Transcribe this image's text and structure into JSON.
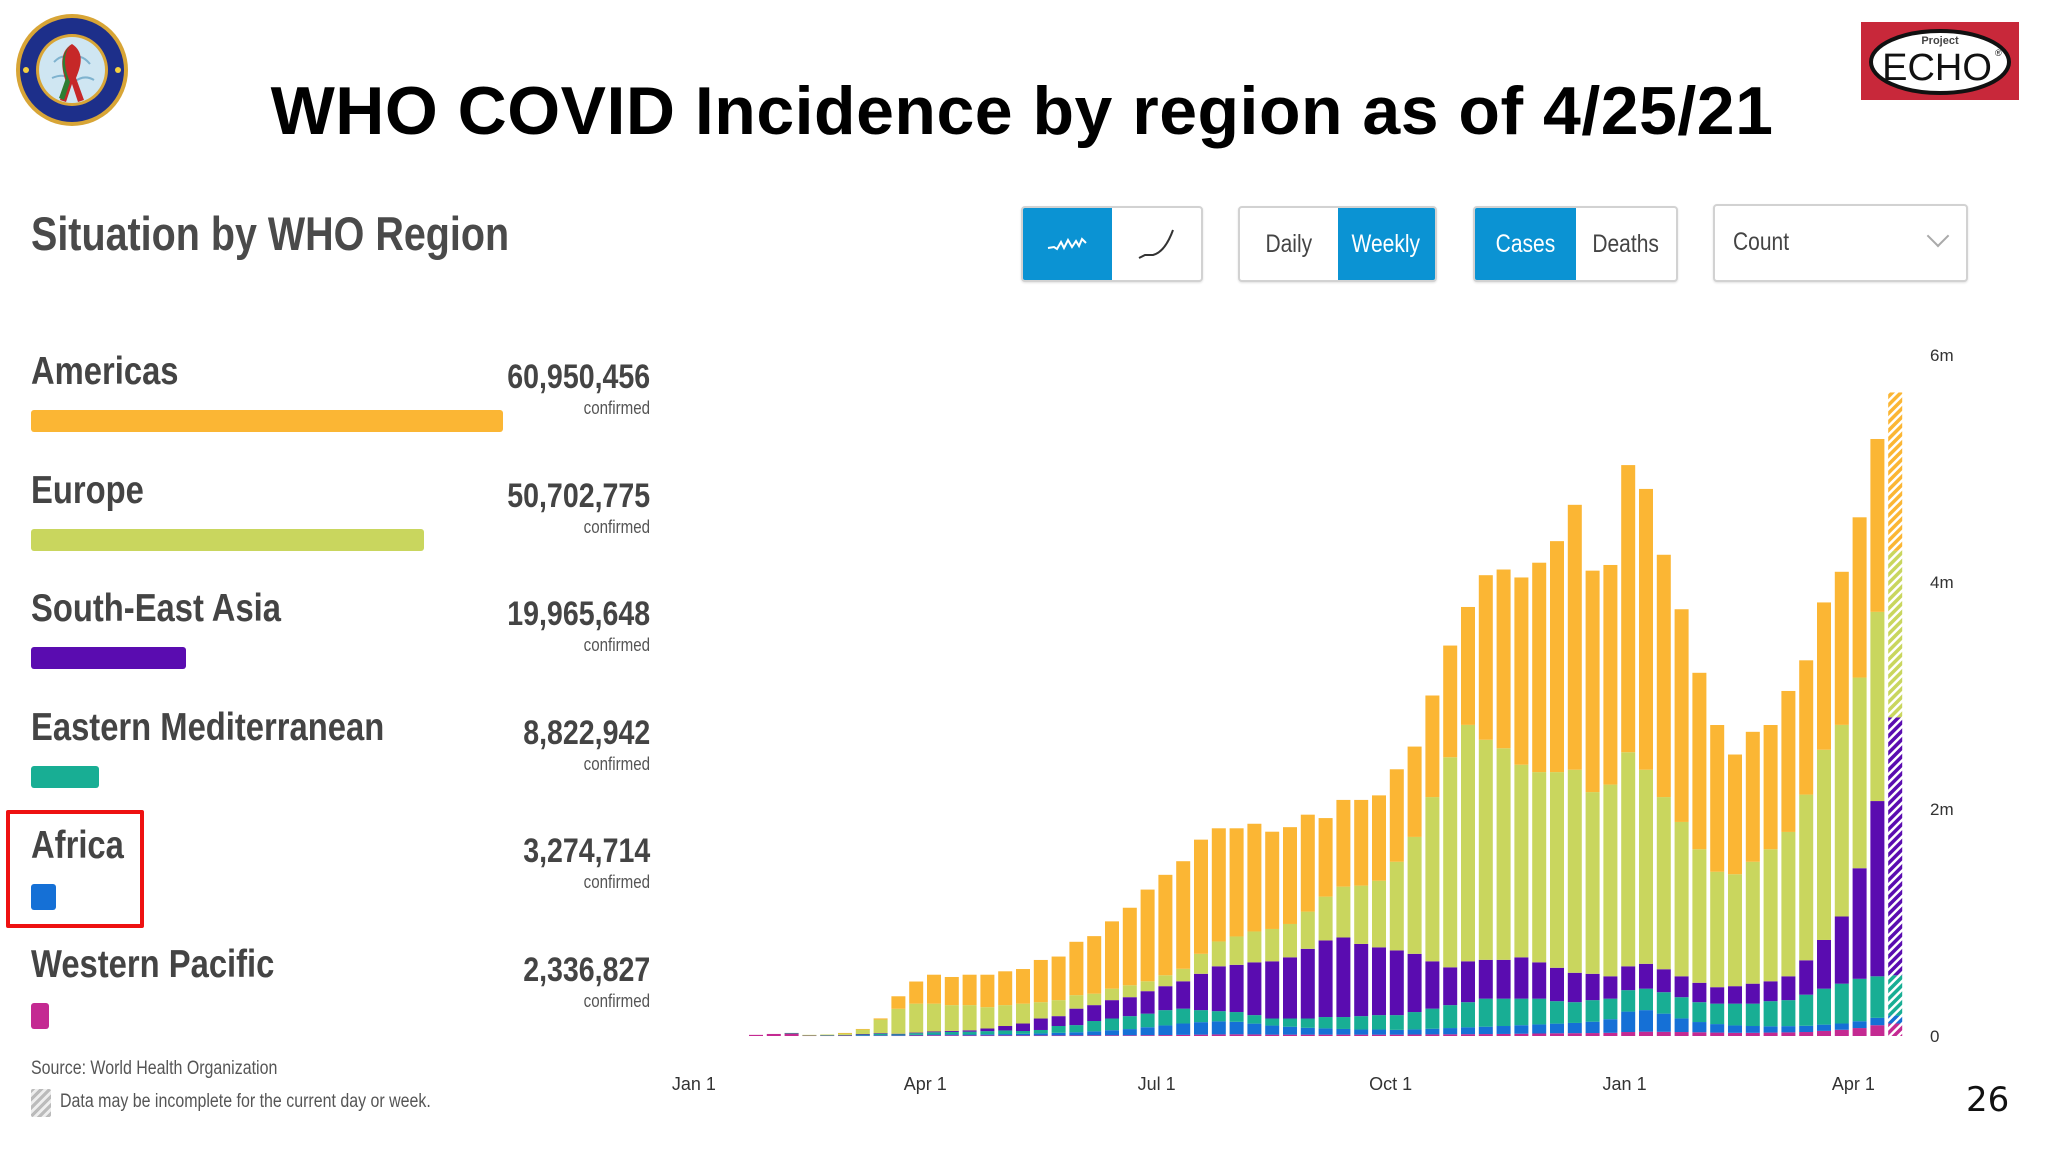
{
  "slide": {
    "title": "WHO COVID Incidence by region as of 4/25/21",
    "page_number": "26",
    "logo_left_text": [
      "DEPARTMENT OF DEFENSE",
      "HIV/AIDS PREVENTION"
    ],
    "logo_right": {
      "small": "Project",
      "big": "ECHO",
      "mark": "®"
    }
  },
  "dashboard": {
    "title": "Situation by WHO Region",
    "controls": {
      "chart_mode": [
        {
          "icon": "wavy-line-icon",
          "active": true
        },
        {
          "icon": "cumulative-curve-icon",
          "active": false
        }
      ],
      "period": [
        {
          "label": "Daily",
          "active": false
        },
        {
          "label": "Weekly",
          "active": true
        }
      ],
      "metric": [
        {
          "label": "Cases",
          "active": true
        },
        {
          "label": "Deaths",
          "active": false
        }
      ],
      "scale_select": "Count"
    },
    "regions": [
      {
        "name": "Americas",
        "value": "60,950,456",
        "count": 60950456,
        "sub": "confirmed",
        "color": "#fbb634"
      },
      {
        "name": "Europe",
        "value": "50,702,775",
        "count": 50702775,
        "sub": "confirmed",
        "color": "#c9d65e"
      },
      {
        "name": "South-East Asia",
        "value": "19,965,648",
        "count": 19965648,
        "sub": "confirmed",
        "color": "#5a0cb0"
      },
      {
        "name": "Eastern Mediterranean",
        "value": "8,822,942",
        "count": 8822942,
        "sub": "confirmed",
        "color": "#18ae94"
      },
      {
        "name": "Africa",
        "value": "3,274,714",
        "count": 3274714,
        "sub": "confirmed",
        "color": "#1570d6",
        "highlighted": true
      },
      {
        "name": "Western Pacific",
        "value": "2,336,827",
        "count": 2336827,
        "sub": "confirmed",
        "color": "#c42a92"
      }
    ],
    "source": "Source: World Health Organization",
    "note": "Data may be incomplete for the current day or week."
  },
  "chart_data": {
    "type": "bar",
    "stacked": true,
    "units": "millions of cases per week",
    "y_ticks": [
      {
        "value": 0,
        "label": "0"
      },
      {
        "value": 2,
        "label": "2m"
      },
      {
        "value": 4,
        "label": "4m"
      },
      {
        "value": 6,
        "label": "6m"
      }
    ],
    "ylim": [
      0,
      6
    ],
    "y_axis_side": "right",
    "grid": false,
    "x_ticks": [
      {
        "date": "2020-01-01",
        "label": "Jan 1"
      },
      {
        "date": "2020-04-01",
        "label": "Apr 1"
      },
      {
        "date": "2020-07-01",
        "label": "Jul 1"
      },
      {
        "date": "2020-10-01",
        "label": "Oct 1"
      },
      {
        "date": "2021-01-01",
        "label": "Jan 1"
      },
      {
        "date": "2021-04-01",
        "label": "Apr 1"
      }
    ],
    "incomplete_last_bar": true,
    "x": [
      "2020-01-27",
      "2020-02-03",
      "2020-02-10",
      "2020-02-17",
      "2020-02-24",
      "2020-03-02",
      "2020-03-09",
      "2020-03-16",
      "2020-03-23",
      "2020-03-30",
      "2020-04-06",
      "2020-04-13",
      "2020-04-20",
      "2020-04-27",
      "2020-05-04",
      "2020-05-11",
      "2020-05-18",
      "2020-05-25",
      "2020-06-01",
      "2020-06-08",
      "2020-06-15",
      "2020-06-22",
      "2020-06-29",
      "2020-07-06",
      "2020-07-13",
      "2020-07-20",
      "2020-07-27",
      "2020-08-03",
      "2020-08-10",
      "2020-08-17",
      "2020-08-24",
      "2020-08-31",
      "2020-09-07",
      "2020-09-14",
      "2020-09-21",
      "2020-09-28",
      "2020-10-05",
      "2020-10-12",
      "2020-10-19",
      "2020-10-26",
      "2020-11-02",
      "2020-11-09",
      "2020-11-16",
      "2020-11-23",
      "2020-11-30",
      "2020-12-07",
      "2020-12-14",
      "2020-12-21",
      "2020-12-28",
      "2021-01-04",
      "2021-01-11",
      "2021-01-18",
      "2021-01-25",
      "2021-02-01",
      "2021-02-08",
      "2021-02-15",
      "2021-02-22",
      "2021-03-01",
      "2021-03-08",
      "2021-03-15",
      "2021-03-22",
      "2021-03-29",
      "2021-04-05",
      "2021-04-12",
      "2021-04-19"
    ],
    "series": [
      {
        "region": "Western Pacific",
        "color": "#c42a92",
        "values": [
          0.01,
          0.018,
          0.025,
          0.005,
          0.005,
          0.005,
          0.005,
          0.005,
          0.005,
          0.005,
          0.006,
          0.006,
          0.005,
          0.005,
          0.005,
          0.005,
          0.005,
          0.005,
          0.005,
          0.006,
          0.006,
          0.006,
          0.007,
          0.008,
          0.01,
          0.012,
          0.014,
          0.015,
          0.014,
          0.012,
          0.012,
          0.012,
          0.012,
          0.012,
          0.012,
          0.012,
          0.012,
          0.013,
          0.014,
          0.015,
          0.016,
          0.017,
          0.018,
          0.02,
          0.022,
          0.024,
          0.025,
          0.026,
          0.028,
          0.035,
          0.038,
          0.037,
          0.035,
          0.033,
          0.03,
          0.028,
          0.028,
          0.03,
          0.032,
          0.035,
          0.045,
          0.055,
          0.07,
          0.095,
          0.11
        ]
      },
      {
        "region": "Africa",
        "color": "#1570d6",
        "values": [
          0,
          0,
          0,
          0,
          0,
          0,
          0.001,
          0.002,
          0.002,
          0.005,
          0.007,
          0.008,
          0.008,
          0.01,
          0.012,
          0.014,
          0.018,
          0.023,
          0.028,
          0.035,
          0.045,
          0.055,
          0.07,
          0.085,
          0.1,
          0.11,
          0.115,
          0.11,
          0.095,
          0.08,
          0.07,
          0.06,
          0.055,
          0.05,
          0.045,
          0.045,
          0.042,
          0.045,
          0.05,
          0.055,
          0.06,
          0.065,
          0.07,
          0.075,
          0.08,
          0.085,
          0.09,
          0.1,
          0.12,
          0.18,
          0.19,
          0.16,
          0.12,
          0.09,
          0.075,
          0.065,
          0.06,
          0.055,
          0.055,
          0.055,
          0.055,
          0.055,
          0.06,
          0.065,
          0.07
        ]
      },
      {
        "region": "Eastern Mediterranean",
        "color": "#18ae94",
        "values": [
          0,
          0,
          0.002,
          0.003,
          0.003,
          0.005,
          0.01,
          0.015,
          0.01,
          0.015,
          0.02,
          0.022,
          0.025,
          0.028,
          0.032,
          0.025,
          0.03,
          0.06,
          0.063,
          0.091,
          0.103,
          0.114,
          0.12,
          0.135,
          0.131,
          0.106,
          0.09,
          0.086,
          0.075,
          0.062,
          0.072,
          0.082,
          0.1,
          0.105,
          0.118,
          0.127,
          0.13,
          0.153,
          0.177,
          0.202,
          0.222,
          0.247,
          0.241,
          0.234,
          0.227,
          0.198,
          0.183,
          0.19,
          0.181,
          0.189,
          0.189,
          0.189,
          0.187,
          0.175,
          0.18,
          0.192,
          0.197,
          0.222,
          0.229,
          0.274,
          0.317,
          0.351,
          0.374,
          0.366,
          0.355
        ]
      },
      {
        "region": "South-East Asia",
        "color": "#5a0cb0",
        "values": [
          0,
          0,
          0,
          0,
          0,
          0,
          0.001,
          0.003,
          0.003,
          0.005,
          0.007,
          0.009,
          0.012,
          0.023,
          0.039,
          0.066,
          0.101,
          0.087,
          0.145,
          0.14,
          0.162,
          0.167,
          0.198,
          0.211,
          0.241,
          0.32,
          0.395,
          0.416,
          0.465,
          0.504,
          0.539,
          0.614,
          0.675,
          0.701,
          0.636,
          0.597,
          0.57,
          0.513,
          0.417,
          0.333,
          0.36,
          0.342,
          0.342,
          0.364,
          0.32,
          0.294,
          0.259,
          0.232,
          0.197,
          0.21,
          0.219,
          0.202,
          0.184,
          0.171,
          0.145,
          0.154,
          0.176,
          0.175,
          0.21,
          0.303,
          0.429,
          0.592,
          0.974,
          1.544,
          2.272
        ]
      },
      {
        "region": "Europe",
        "color": "#c9d65e",
        "values": [
          0,
          0,
          0,
          0.002,
          0.005,
          0.015,
          0.04,
          0.12,
          0.22,
          0.255,
          0.245,
          0.227,
          0.222,
          0.188,
          0.184,
          0.175,
          0.144,
          0.141,
          0.119,
          0.101,
          0.101,
          0.105,
          0.087,
          0.096,
          0.11,
          0.176,
          0.219,
          0.25,
          0.272,
          0.285,
          0.294,
          0.328,
          0.386,
          0.448,
          0.514,
          0.587,
          0.781,
          1.03,
          1.447,
          1.851,
          2.083,
          1.939,
          1.864,
          1.697,
          1.676,
          1.724,
          1.789,
          1.601,
          1.689,
          1.886,
          1.71,
          1.517,
          1.36,
          1.176,
          1.017,
          0.986,
          1.074,
          1.163,
          1.272,
          1.46,
          1.676,
          1.688,
          1.68,
          1.667,
          1.469
        ]
      },
      {
        "region": "Americas",
        "color": "#fbb634",
        "values": [
          0,
          0,
          0,
          0,
          0,
          0.002,
          0.005,
          0.01,
          0.11,
          0.195,
          0.255,
          0.248,
          0.268,
          0.286,
          0.298,
          0.305,
          0.372,
          0.384,
          0.47,
          0.507,
          0.593,
          0.683,
          0.808,
          0.885,
          0.948,
          1.006,
          0.997,
          0.953,
          0.949,
          0.857,
          0.853,
          0.854,
          0.692,
          0.764,
          0.755,
          0.752,
          0.815,
          0.796,
          0.895,
          0.984,
          1.039,
          1.45,
          1.575,
          1.65,
          1.845,
          2.035,
          2.334,
          1.951,
          1.935,
          2.53,
          2.474,
          2.135,
          1.874,
          1.555,
          1.293,
          1.055,
          1.145,
          1.095,
          1.242,
          1.183,
          1.298,
          1.349,
          1.412,
          1.523,
          1.394
        ]
      }
    ]
  }
}
